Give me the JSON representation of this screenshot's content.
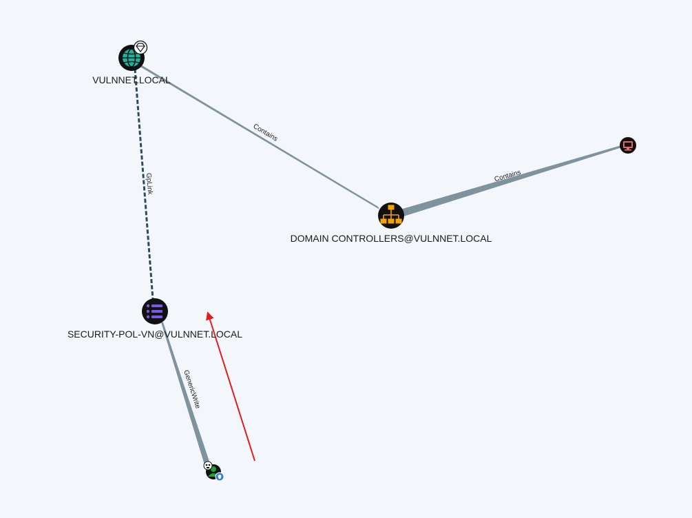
{
  "nodes": {
    "domain": {
      "label": "VULNNET.LOCAL",
      "type": "domain",
      "color": "#16b5a0"
    },
    "ou": {
      "label": "DOMAIN CONTROLLERS@VULNNET.LOCAL",
      "type": "ou",
      "color": "#f5a300"
    },
    "computer": {
      "label": "",
      "type": "computer",
      "color": "#e8676b"
    },
    "gpo": {
      "label": "SECURITY-POL-VN@VULNNET.LOCAL",
      "type": "gpo",
      "color": "#7a58e6"
    },
    "user": {
      "label": "",
      "type": "user",
      "color": "#1ea23a"
    }
  },
  "edges": {
    "domain_ou": {
      "label": "Contains",
      "color": "#7f939f"
    },
    "ou_computer": {
      "label": "Contains",
      "color": "#7f939f"
    },
    "domain_gpo": {
      "label": "GpLink",
      "color": "#2e4a5f",
      "style": "dashed"
    },
    "gpo_user": {
      "label": "GenericWrite",
      "color": "#7f939f"
    }
  },
  "annotation": {
    "type": "arrow",
    "color": "#e31b1b"
  }
}
